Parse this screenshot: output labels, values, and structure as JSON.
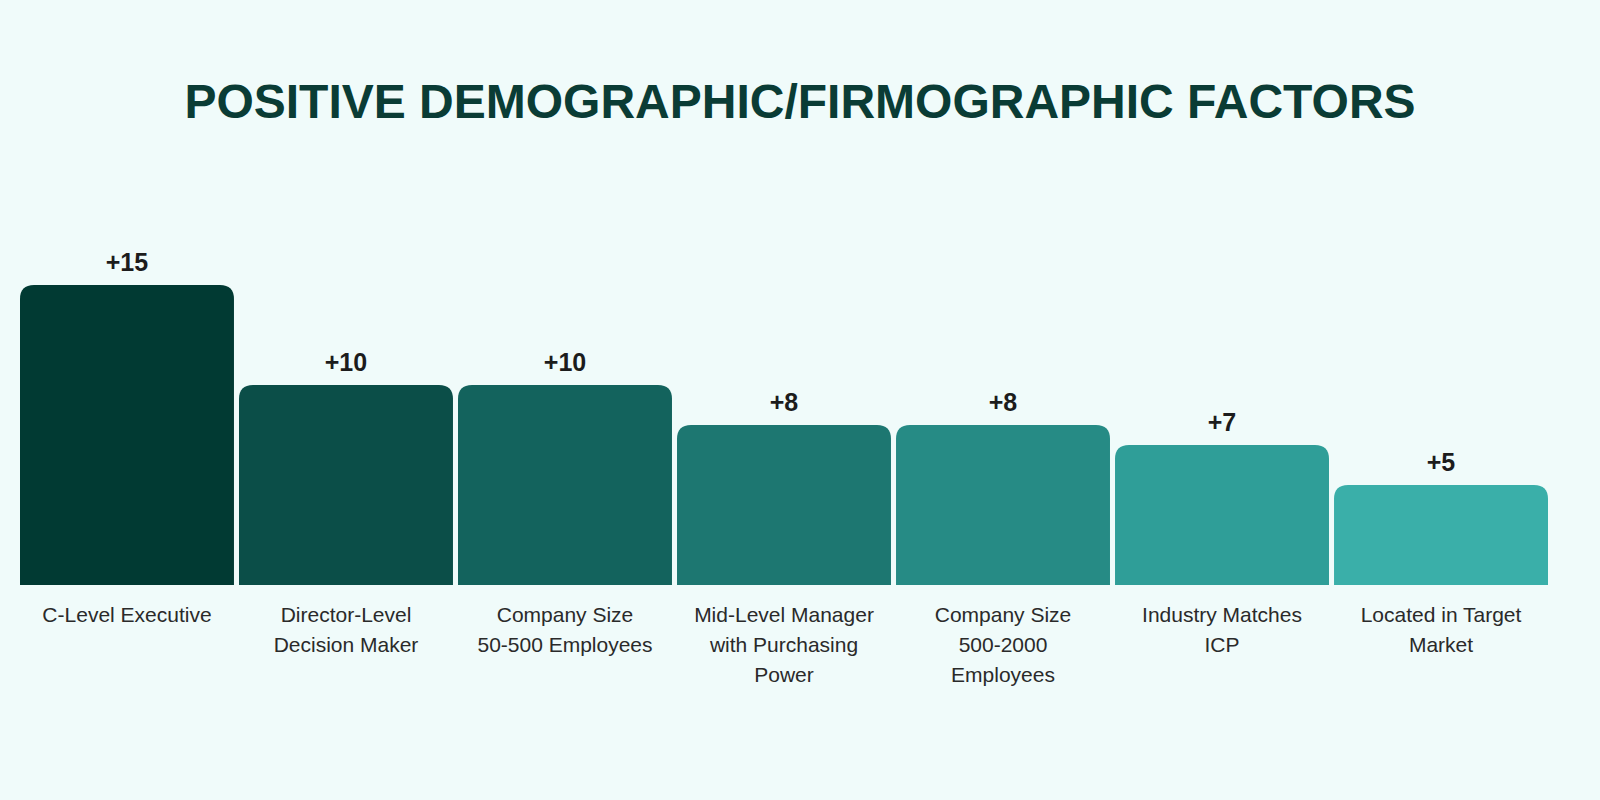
{
  "chart_data": {
    "type": "bar",
    "title": "POSITIVE DEMOGRAPHIC/FIRMOGRAPHIC FACTORS",
    "categories": [
      "C-Level Executive",
      "Director-Level Decision Maker",
      "Company Size 50-500 Employees",
      "Mid-Level Manager with Purchasing Power",
      "Company Size 500-2000 Employees",
      "Industry Matches ICP",
      "Located in Target Market"
    ],
    "values": [
      15,
      10,
      10,
      8,
      8,
      7,
      5
    ],
    "value_labels": [
      "+15",
      "+10",
      "+10",
      "+8",
      "+8",
      "+7",
      "+5"
    ],
    "colors": [
      "#013a33",
      "#0b4e48",
      "#13635d",
      "#1d7771",
      "#268b85",
      "#2f9e98",
      "#3aafa9"
    ],
    "ylim": [
      0,
      15
    ],
    "data_labels": true,
    "tick_labels": "x"
  }
}
